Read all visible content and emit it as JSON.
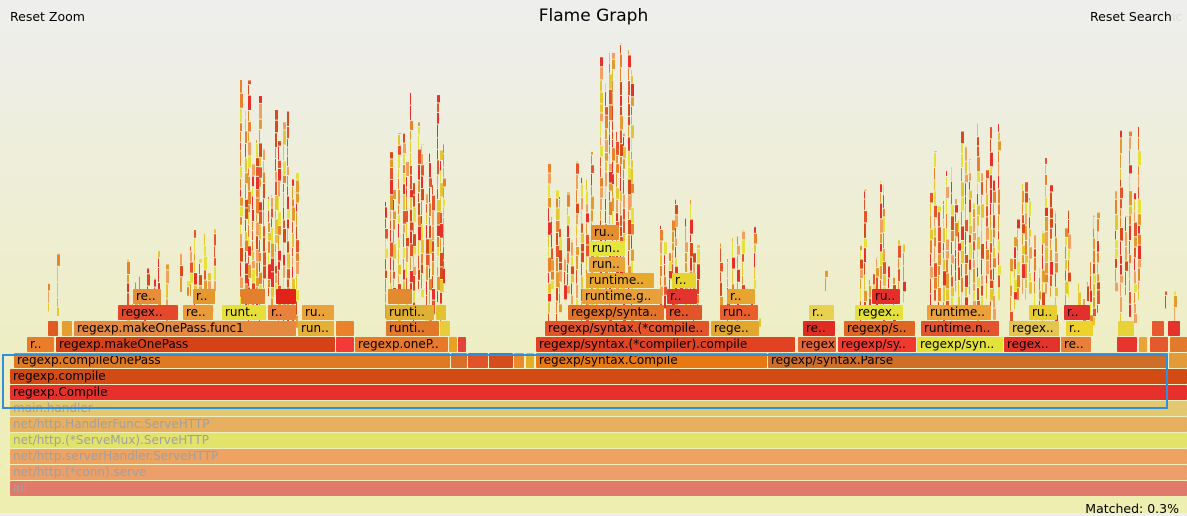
{
  "title": "Flame Graph",
  "controls": {
    "reset_zoom": "Reset Zoom",
    "reset_search": "Reset Search",
    "ic": "ic"
  },
  "matched": "Matched: 0.3%",
  "frames": [
    {
      "label": "all",
      "l": 10,
      "w": 1177,
      "d": 0,
      "c": "#e07a6a",
      "dim": true
    },
    {
      "label": "net/http.(*conn).serve",
      "l": 10,
      "w": 1177,
      "d": 1,
      "c": "#ec9f68",
      "dim": true
    },
    {
      "label": "net/http.serverHandler.ServeHTTP",
      "l": 10,
      "w": 1177,
      "d": 2,
      "c": "#eea363",
      "dim": true
    },
    {
      "label": "net/http.(*ServeMux).ServeHTTP",
      "l": 10,
      "w": 1177,
      "d": 3,
      "c": "#e2e36a",
      "dim": true
    },
    {
      "label": "net/http.HandlerFunc.ServeHTTP",
      "l": 10,
      "w": 1177,
      "d": 4,
      "c": "#e6b060",
      "dim": true
    },
    {
      "label": "main.handler",
      "l": 10,
      "w": 1177,
      "d": 5,
      "c": "#e2c870",
      "dim": true
    },
    {
      "label": "regexp.Compile",
      "l": 10,
      "w": 1177,
      "d": 6,
      "c": "#e8302a"
    },
    {
      "label": "regexp.compile",
      "l": 10,
      "w": 1177,
      "d": 7,
      "c": "#d24a14"
    },
    {
      "label": "regexp.compileOnePass",
      "l": 14,
      "w": 436,
      "d": 8,
      "c": "#e07a22"
    },
    {
      "label": "",
      "l": 451,
      "w": 16,
      "d": 8,
      "c": "#d9702a"
    },
    {
      "label": "",
      "l": 468,
      "w": 20,
      "d": 8,
      "c": "#e1542a"
    },
    {
      "label": "",
      "l": 489,
      "w": 24,
      "d": 8,
      "c": "#d54d1d"
    },
    {
      "label": "",
      "l": 514,
      "w": 10,
      "d": 8,
      "c": "#ea8a2a"
    },
    {
      "label": "",
      "l": 526,
      "w": 8,
      "d": 8,
      "c": "#e4b023"
    },
    {
      "label": "regexp/syntax.Compile",
      "l": 536,
      "w": 231,
      "d": 8,
      "c": "#e87812"
    },
    {
      "label": "regexp/syntax.Parse",
      "l": 768,
      "w": 400,
      "d": 8,
      "c": "#ce6e28"
    },
    {
      "label": "",
      "l": 1169,
      "w": 18,
      "d": 8,
      "c": "#e39b3a"
    },
    {
      "label": "r..",
      "l": 27,
      "w": 27,
      "d": 9,
      "c": "#e97d2a"
    },
    {
      "label": "regexp.makeOnePass",
      "l": 56,
      "w": 279,
      "d": 9,
      "c": "#d64218"
    },
    {
      "label": "",
      "l": 336,
      "w": 18,
      "d": 9,
      "c": "#f33a36"
    },
    {
      "label": "regexp.oneP..",
      "l": 355,
      "w": 93,
      "d": 9,
      "c": "#e8782a"
    },
    {
      "label": "",
      "l": 449,
      "w": 8,
      "d": 9,
      "c": "#e9a224"
    },
    {
      "label": "",
      "l": 458,
      "w": 8,
      "d": 9,
      "c": "#e2443a"
    },
    {
      "label": "regexp/syntax.(*compiler).compile",
      "l": 536,
      "w": 259,
      "d": 9,
      "c": "#e04222"
    },
    {
      "label": "regexp..",
      "l": 798,
      "w": 38,
      "d": 9,
      "c": "#e56532"
    },
    {
      "label": "regexp/sy..",
      "l": 838,
      "w": 78,
      "d": 9,
      "c": "#f03a30"
    },
    {
      "label": "regexp/syn..",
      "l": 917,
      "w": 86,
      "d": 9,
      "c": "#e2e23a"
    },
    {
      "label": "regex..",
      "l": 1004,
      "w": 56,
      "d": 9,
      "c": "#e2342a"
    },
    {
      "label": "re..",
      "l": 1061,
      "w": 30,
      "d": 9,
      "c": "#e8803a"
    },
    {
      "label": "",
      "l": 1117,
      "w": 20,
      "d": 9,
      "c": "#e8342c"
    },
    {
      "label": "",
      "l": 1139,
      "w": 8,
      "d": 9,
      "c": "#e8a43a"
    },
    {
      "label": "",
      "l": 1150,
      "w": 18,
      "d": 9,
      "c": "#e45a2e"
    },
    {
      "label": "",
      "l": 1170,
      "w": 17,
      "d": 9,
      "c": "#e27a2e"
    },
    {
      "label": "",
      "l": 48,
      "w": 10,
      "d": 10,
      "c": "#e05a22"
    },
    {
      "label": "",
      "l": 62,
      "w": 10,
      "d": 10,
      "c": "#e69e2e"
    },
    {
      "label": "regexp.makeOnePass.func1",
      "l": 74,
      "w": 222,
      "d": 10,
      "c": "#e38a40"
    },
    {
      "label": "run..",
      "l": 298,
      "w": 36,
      "d": 10,
      "c": "#e5b03a"
    },
    {
      "label": "",
      "l": 336,
      "w": 18,
      "d": 10,
      "c": "#e9822a"
    },
    {
      "label": "runti..",
      "l": 386,
      "w": 53,
      "d": 10,
      "c": "#e1782a"
    },
    {
      "label": "",
      "l": 440,
      "w": 10,
      "d": 10,
      "c": "#e8cc3a"
    },
    {
      "label": "regexp/syntax.(*compile..",
      "l": 545,
      "w": 164,
      "d": 10,
      "c": "#e3542a"
    },
    {
      "label": "rege..",
      "l": 711,
      "w": 48,
      "d": 10,
      "c": "#e3a62e"
    },
    {
      "label": "re..",
      "l": 803,
      "w": 32,
      "d": 10,
      "c": "#e02c22"
    },
    {
      "label": "regexp/s..",
      "l": 844,
      "w": 71,
      "d": 10,
      "c": "#e06624"
    },
    {
      "label": "runtime.n..",
      "l": 921,
      "w": 78,
      "d": 10,
      "c": "#e3542e"
    },
    {
      "label": "regex..",
      "l": 1009,
      "w": 50,
      "d": 10,
      "c": "#e2c44e"
    },
    {
      "label": "r..",
      "l": 1066,
      "w": 27,
      "d": 10,
      "c": "#eed12a"
    },
    {
      "label": "",
      "l": 1118,
      "w": 16,
      "d": 10,
      "c": "#e8d23a"
    },
    {
      "label": "",
      "l": 1152,
      "w": 12,
      "d": 10,
      "c": "#e65a2e"
    },
    {
      "label": "",
      "l": 1168,
      "w": 12,
      "d": 10,
      "c": "#e5322c"
    },
    {
      "label": "regex..",
      "l": 118,
      "w": 60,
      "d": 11,
      "c": "#e5482a"
    },
    {
      "label": "re..",
      "l": 183,
      "w": 30,
      "d": 11,
      "c": "#eb9a3a"
    },
    {
      "label": "runt..",
      "l": 222,
      "w": 44,
      "d": 11,
      "c": "#e6de3a"
    },
    {
      "label": "r..",
      "l": 268,
      "w": 28,
      "d": 11,
      "c": "#e8823a"
    },
    {
      "label": "ru..",
      "l": 302,
      "w": 32,
      "d": 11,
      "c": "#eba23a"
    },
    {
      "label": "runti..",
      "l": 386,
      "w": 48,
      "d": 11,
      "c": "#e0b035"
    },
    {
      "label": "",
      "l": 436,
      "w": 10,
      "d": 11,
      "c": "#e2c22e"
    },
    {
      "label": "regexp/synta..",
      "l": 568,
      "w": 96,
      "d": 11,
      "c": "#e2742a"
    },
    {
      "label": "re..",
      "l": 666,
      "w": 36,
      "d": 11,
      "c": "#e2542a"
    },
    {
      "label": "run..",
      "l": 720,
      "w": 38,
      "d": 11,
      "c": "#ea5e2a"
    },
    {
      "label": "r..",
      "l": 809,
      "w": 25,
      "d": 11,
      "c": "#e9d04e"
    },
    {
      "label": "regex..",
      "l": 855,
      "w": 48,
      "d": 11,
      "c": "#e4e23a"
    },
    {
      "label": "runtime..",
      "l": 927,
      "w": 64,
      "d": 11,
      "c": "#eba03a"
    },
    {
      "label": "ru..",
      "l": 1029,
      "w": 28,
      "d": 11,
      "c": "#e9cc2e"
    },
    {
      "label": "r..",
      "l": 1064,
      "w": 26,
      "d": 11,
      "c": "#e3302e"
    },
    {
      "label": "re..",
      "l": 133,
      "w": 28,
      "d": 12,
      "c": "#e78e3a"
    },
    {
      "label": "r..",
      "l": 193,
      "w": 22,
      "d": 12,
      "c": "#e3992e"
    },
    {
      "label": "",
      "l": 241,
      "w": 24,
      "d": 12,
      "c": "#e3802e"
    },
    {
      "label": "",
      "l": 276,
      "w": 20,
      "d": 12,
      "c": "#e3221a"
    },
    {
      "label": "",
      "l": 388,
      "w": 24,
      "d": 12,
      "c": "#e28a2e"
    },
    {
      "label": "runtime.g..",
      "l": 582,
      "w": 80,
      "d": 12,
      "c": "#e7a03a"
    },
    {
      "label": "r..",
      "l": 667,
      "w": 30,
      "d": 12,
      "c": "#e3342e"
    },
    {
      "label": "r..",
      "l": 727,
      "w": 28,
      "d": 12,
      "c": "#e7a42e"
    },
    {
      "label": "ru..",
      "l": 872,
      "w": 28,
      "d": 12,
      "c": "#e32e2a"
    },
    {
      "label": "runtime..",
      "l": 586,
      "w": 68,
      "d": 13,
      "c": "#e8a82e"
    },
    {
      "label": "r..",
      "l": 672,
      "w": 24,
      "d": 13,
      "c": "#e5d42e"
    },
    {
      "label": "run..",
      "l": 589,
      "w": 36,
      "d": 14,
      "c": "#e6a43a"
    },
    {
      "label": "run..",
      "l": 589,
      "w": 36,
      "d": 15,
      "c": "#e6e53a"
    },
    {
      "label": "ru..",
      "l": 591,
      "w": 28,
      "d": 16,
      "c": "#e48e2e"
    }
  ]
}
